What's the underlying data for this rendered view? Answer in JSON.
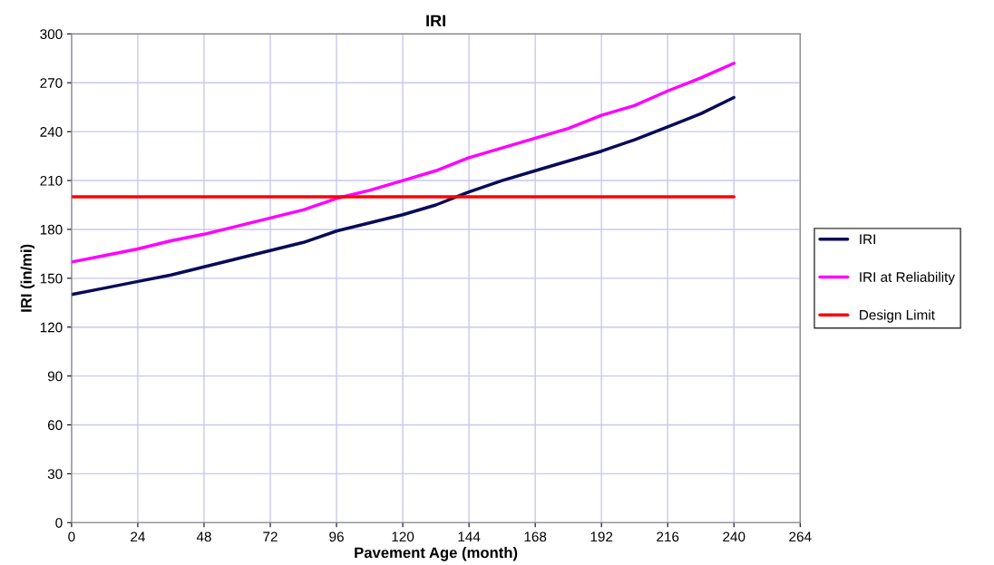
{
  "chart_data": {
    "type": "line",
    "title": "IRI",
    "xlabel": "Pavement Age (month)",
    "ylabel": "IRI (in/mi)",
    "xlim": [
      0,
      264
    ],
    "xticks": [
      0,
      24,
      48,
      72,
      96,
      120,
      144,
      168,
      192,
      216,
      240,
      264
    ],
    "ylim": [
      0,
      300
    ],
    "yticks": [
      0,
      30,
      60,
      90,
      120,
      150,
      180,
      210,
      240,
      270,
      300
    ],
    "grid": true,
    "legend": "right",
    "x": [
      0,
      12,
      24,
      36,
      48,
      60,
      72,
      84,
      96,
      108,
      120,
      132,
      144,
      156,
      168,
      180,
      192,
      204,
      216,
      228,
      240
    ],
    "series": [
      {
        "name": "IRI",
        "color": "#0a0a5a",
        "values": [
          140,
          144,
          148,
          152,
          157,
          162,
          167,
          172,
          179,
          184,
          189,
          195,
          203,
          210,
          216,
          222,
          228,
          235,
          243,
          251,
          261
        ]
      },
      {
        "name": "IRI at Reliability",
        "color": "#ff00ff",
        "values": [
          160,
          164,
          168,
          173,
          177,
          182,
          187,
          192,
          199,
          204,
          210,
          216,
          224,
          230,
          236,
          242,
          250,
          256,
          265,
          273,
          282
        ]
      },
      {
        "name": "Design Limit",
        "color": "#ff0000",
        "x": [
          0,
          240
        ],
        "values": [
          200,
          200
        ]
      }
    ]
  }
}
